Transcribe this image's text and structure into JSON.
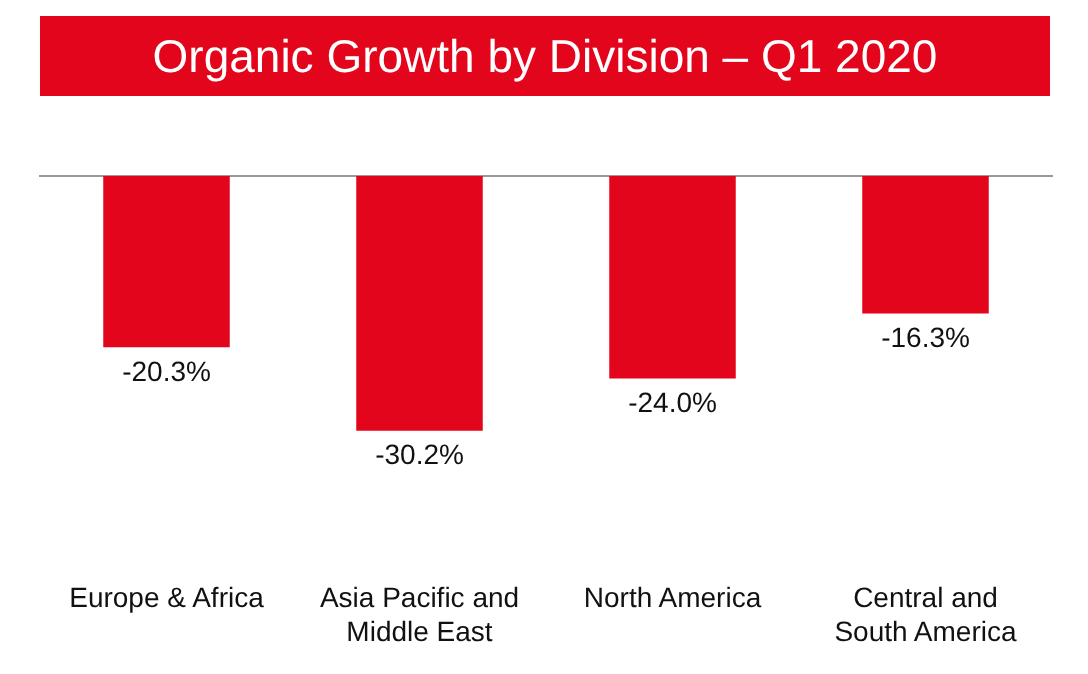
{
  "chart_data": {
    "type": "bar",
    "title": "Organic Growth by Division – Q1 2020",
    "categories": [
      "Europe & Africa",
      "Asia Pacific and Middle East",
      "North America",
      "Central and South America"
    ],
    "values": [
      -20.3,
      -30.2,
      -24.0,
      -16.3
    ],
    "value_labels": [
      "-20.3%",
      "-30.2%",
      "-24.0%",
      "-16.3%"
    ],
    "color": "#e3051b",
    "grid": false,
    "legend": false
  }
}
